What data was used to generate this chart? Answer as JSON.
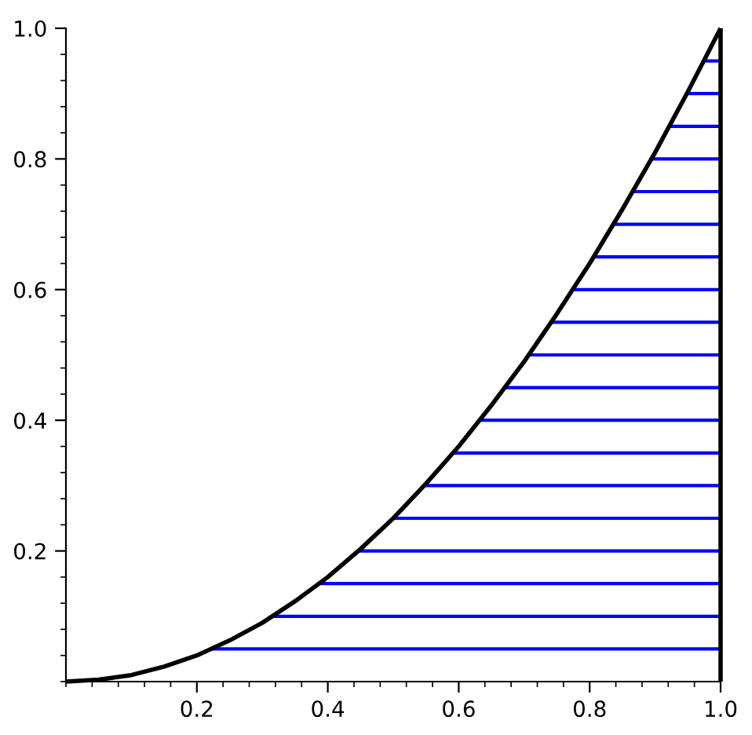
{
  "chart_data": {
    "type": "line",
    "xlim": [
      0,
      1
    ],
    "ylim": [
      0,
      1
    ],
    "xticks": [
      0.2,
      0.4,
      0.6,
      0.8,
      {
        "value": 1.0,
        "label": "1.0"
      }
    ],
    "yticks": [
      0.2,
      0.4,
      0.6,
      0.8,
      {
        "value": 1.0,
        "label": "1.0"
      }
    ],
    "marker": "none",
    "line_style": "solid",
    "series": [
      {
        "color": "#000000",
        "x": [
          0,
          0.05,
          0.1,
          0.15,
          0.2,
          0.25,
          0.3,
          0.35,
          0.4,
          0.45,
          0.5,
          0.55,
          0.6,
          0.65,
          0.7,
          0.75,
          0.8,
          0.85,
          0.9,
          0.95,
          1
        ],
        "values": [
          0,
          0.003,
          0.01,
          0.023,
          0.04,
          0.063,
          0.09,
          0.123,
          0.16,
          0.203,
          0.25,
          0.303,
          0.36,
          0.423,
          0.49,
          0.563,
          0.64,
          0.723,
          0.81,
          0.903,
          1
        ]
      },
      {
        "color": "#000000",
        "x": [
          1,
          1
        ],
        "values": [
          0,
          1
        ]
      },
      {
        "color": "#0000ff",
        "x": [
          0.224,
          1
        ],
        "values": [
          0.05,
          0.05
        ]
      },
      {
        "color": "#0000ff",
        "x": [
          0.316,
          1
        ],
        "values": [
          0.1,
          0.1
        ]
      },
      {
        "color": "#0000ff",
        "x": [
          0.387,
          1
        ],
        "values": [
          0.15,
          0.15
        ]
      },
      {
        "color": "#0000ff",
        "x": [
          0.447,
          1
        ],
        "values": [
          0.2,
          0.2
        ]
      },
      {
        "color": "#0000ff",
        "x": [
          0.5,
          1
        ],
        "values": [
          0.25,
          0.25
        ]
      },
      {
        "color": "#0000ff",
        "x": [
          0.548,
          1
        ],
        "values": [
          0.3,
          0.3
        ]
      },
      {
        "color": "#0000ff",
        "x": [
          0.592,
          1
        ],
        "values": [
          0.35,
          0.35
        ]
      },
      {
        "color": "#0000ff",
        "x": [
          0.632,
          1
        ],
        "values": [
          0.4,
          0.4
        ]
      },
      {
        "color": "#0000ff",
        "x": [
          0.671,
          1
        ],
        "values": [
          0.45,
          0.45
        ]
      },
      {
        "color": "#0000ff",
        "x": [
          0.707,
          1
        ],
        "values": [
          0.5,
          0.5
        ]
      },
      {
        "color": "#0000ff",
        "x": [
          0.742,
          1
        ],
        "values": [
          0.55,
          0.55
        ]
      },
      {
        "color": "#0000ff",
        "x": [
          0.775,
          1
        ],
        "values": [
          0.6,
          0.6
        ]
      },
      {
        "color": "#0000ff",
        "x": [
          0.806,
          1
        ],
        "values": [
          0.65,
          0.65
        ]
      },
      {
        "color": "#0000ff",
        "x": [
          0.837,
          1
        ],
        "values": [
          0.7,
          0.7
        ]
      },
      {
        "color": "#0000ff",
        "x": [
          0.866,
          1
        ],
        "values": [
          0.75,
          0.75
        ]
      },
      {
        "color": "#0000ff",
        "x": [
          0.894,
          1
        ],
        "values": [
          0.8,
          0.8
        ]
      },
      {
        "color": "#0000ff",
        "x": [
          0.922,
          1
        ],
        "values": [
          0.85,
          0.85
        ]
      },
      {
        "color": "#0000ff",
        "x": [
          0.949,
          1
        ],
        "values": [
          0.9,
          0.9
        ]
      },
      {
        "color": "#0000ff",
        "x": [
          0.975,
          1
        ],
        "values": [
          0.95,
          0.95
        ]
      }
    ]
  }
}
